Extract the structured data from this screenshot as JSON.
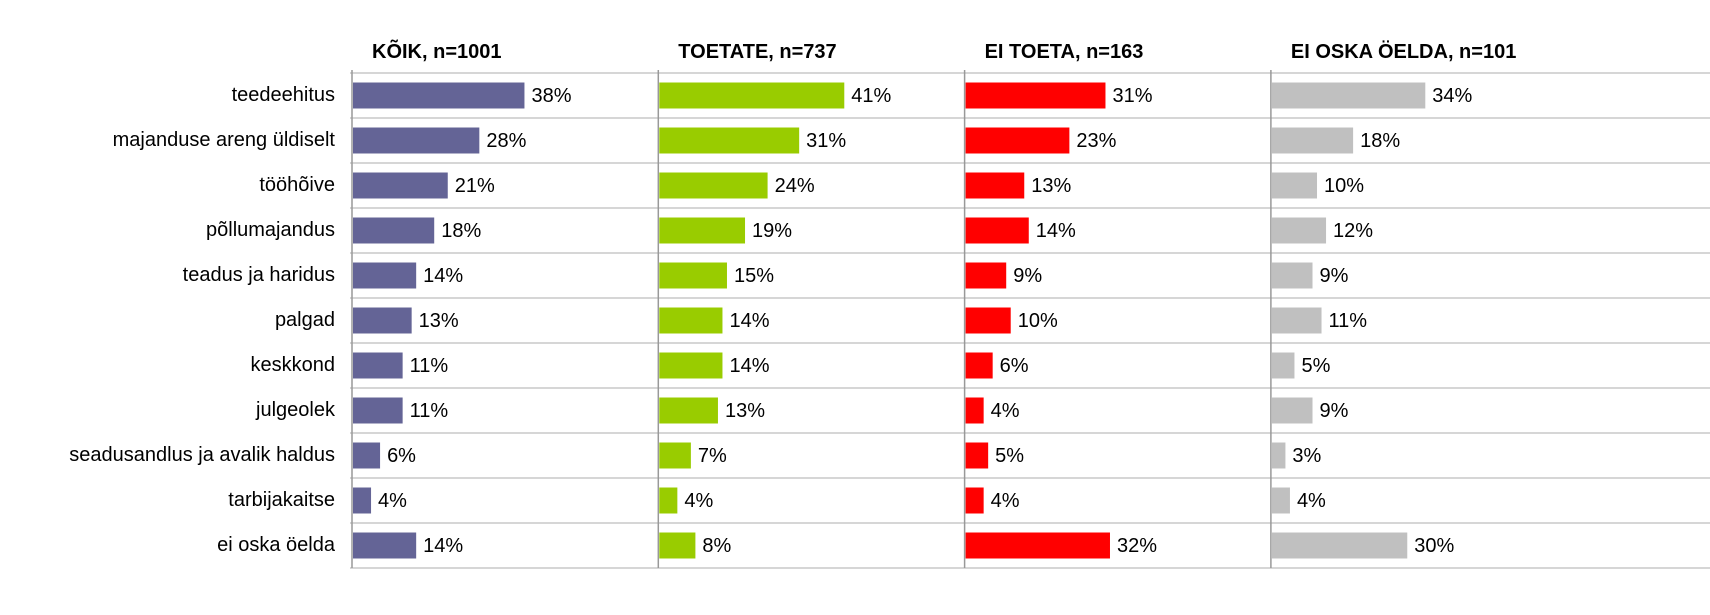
{
  "chart_data": {
    "type": "bar",
    "orientation": "horizontal",
    "categories": [
      "teedeehitus",
      "majanduse areng üldiselt",
      "tööhõive",
      "põllumajandus",
      "teadus ja haridus",
      "palgad",
      "keskkond",
      "julgeolek",
      "seadusandlus ja avalik haldus",
      "tarbijakaitse",
      "ei oska öelda"
    ],
    "xlim": [
      0,
      67
    ],
    "series": [
      {
        "name": "KÕIK, n=1001",
        "color": "#646496",
        "values": [
          38,
          28,
          21,
          18,
          14,
          13,
          11,
          11,
          6,
          4,
          14
        ],
        "value_labels": [
          "38%",
          "28%",
          "21%",
          "18%",
          "14%",
          "13%",
          "11%",
          "11%",
          "6%",
          "4%",
          "14%"
        ]
      },
      {
        "name": "TOETATE, n=737",
        "color": "#99cc00",
        "values": [
          41,
          31,
          24,
          19,
          15,
          14,
          14,
          13,
          7,
          4,
          8
        ],
        "value_labels": [
          "41%",
          "31%",
          "24%",
          "19%",
          "15%",
          "14%",
          "14%",
          "13%",
          "7%",
          "4%",
          "8%"
        ]
      },
      {
        "name": "EI TOETA, n=163",
        "color": "#ff0000",
        "values": [
          31,
          23,
          13,
          14,
          9,
          10,
          6,
          4,
          5,
          4,
          32
        ],
        "value_labels": [
          "31%",
          "23%",
          "13%",
          "14%",
          "9%",
          "10%",
          "6%",
          "4%",
          "5%",
          "4%",
          "32%"
        ]
      },
      {
        "name": "EI OSKA ÖELDA, n=101",
        "color": "#c0c0c0",
        "values": [
          34,
          18,
          10,
          12,
          9,
          11,
          5,
          9,
          3,
          4,
          30
        ],
        "value_labels": [
          "34%",
          "18%",
          "10%",
          "12%",
          "9%",
          "11%",
          "5%",
          "9%",
          "3%",
          "4%",
          "30%"
        ]
      }
    ]
  }
}
